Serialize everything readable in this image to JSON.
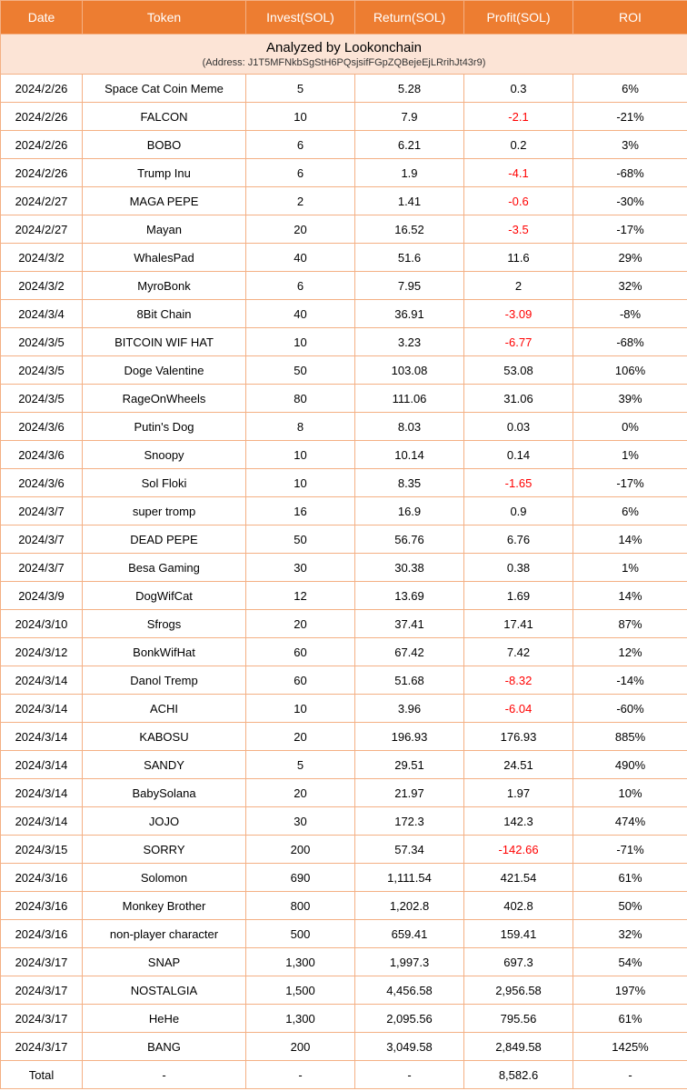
{
  "colors": {
    "header_bg": "#ed7d31",
    "header_fg": "#ffffff",
    "border": "#f4b084",
    "analyzed_bg": "#fce4d6",
    "negative": "#ff0000",
    "text": "#000000"
  },
  "columns": [
    "Date",
    "Token",
    "Invest(SOL)",
    "Return(SOL)",
    "Profit(SOL)",
    "ROI"
  ],
  "analyzed": {
    "title": "Analyzed by Lookonchain",
    "address": "(Address: J1T5MFNkbSgStH6PQsjsifFGpZQBejeEjLRrihJt43r9)"
  },
  "rows": [
    {
      "date": "2024/2/26",
      "token": "Space Cat Coin Meme",
      "invest": "5",
      "return": "5.28",
      "profit": "0.3",
      "roi": "6%",
      "neg": false
    },
    {
      "date": "2024/2/26",
      "token": "FALCON",
      "invest": "10",
      "return": "7.9",
      "profit": "-2.1",
      "roi": "-21%",
      "neg": true
    },
    {
      "date": "2024/2/26",
      "token": "BOBO",
      "invest": "6",
      "return": "6.21",
      "profit": "0.2",
      "roi": "3%",
      "neg": false
    },
    {
      "date": "2024/2/26",
      "token": "Trump Inu",
      "invest": "6",
      "return": "1.9",
      "profit": "-4.1",
      "roi": "-68%",
      "neg": true
    },
    {
      "date": "2024/2/27",
      "token": "MAGA PEPE",
      "invest": "2",
      "return": "1.41",
      "profit": "-0.6",
      "roi": "-30%",
      "neg": true
    },
    {
      "date": "2024/2/27",
      "token": "Mayan",
      "invest": "20",
      "return": "16.52",
      "profit": "-3.5",
      "roi": "-17%",
      "neg": true
    },
    {
      "date": "2024/3/2",
      "token": "WhalesPad",
      "invest": "40",
      "return": "51.6",
      "profit": "11.6",
      "roi": "29%",
      "neg": false
    },
    {
      "date": "2024/3/2",
      "token": "MyroBonk",
      "invest": "6",
      "return": "7.95",
      "profit": "2",
      "roi": "32%",
      "neg": false
    },
    {
      "date": "2024/3/4",
      "token": "8Bit Chain",
      "invest": "40",
      "return": "36.91",
      "profit": "-3.09",
      "roi": "-8%",
      "neg": true
    },
    {
      "date": "2024/3/5",
      "token": "BITCOIN WIF HAT",
      "invest": "10",
      "return": "3.23",
      "profit": "-6.77",
      "roi": "-68%",
      "neg": true
    },
    {
      "date": "2024/3/5",
      "token": "Doge Valentine",
      "invest": "50",
      "return": "103.08",
      "profit": "53.08",
      "roi": "106%",
      "neg": false
    },
    {
      "date": "2024/3/5",
      "token": "RageOnWheels",
      "invest": "80",
      "return": "111.06",
      "profit": "31.06",
      "roi": "39%",
      "neg": false
    },
    {
      "date": "2024/3/6",
      "token": "Putin's Dog",
      "invest": "8",
      "return": "8.03",
      "profit": "0.03",
      "roi": "0%",
      "neg": false
    },
    {
      "date": "2024/3/6",
      "token": "Snoopy",
      "invest": "10",
      "return": "10.14",
      "profit": "0.14",
      "roi": "1%",
      "neg": false
    },
    {
      "date": "2024/3/6",
      "token": "Sol Floki",
      "invest": "10",
      "return": "8.35",
      "profit": "-1.65",
      "roi": "-17%",
      "neg": true
    },
    {
      "date": "2024/3/7",
      "token": "super tromp",
      "invest": "16",
      "return": "16.9",
      "profit": "0.9",
      "roi": "6%",
      "neg": false
    },
    {
      "date": "2024/3/7",
      "token": "DEAD PEPE",
      "invest": "50",
      "return": "56.76",
      "profit": "6.76",
      "roi": "14%",
      "neg": false
    },
    {
      "date": "2024/3/7",
      "token": "Besa Gaming",
      "invest": "30",
      "return": "30.38",
      "profit": "0.38",
      "roi": "1%",
      "neg": false
    },
    {
      "date": "2024/3/9",
      "token": "DogWifCat",
      "invest": "12",
      "return": "13.69",
      "profit": "1.69",
      "roi": "14%",
      "neg": false
    },
    {
      "date": "2024/3/10",
      "token": "Sfrogs",
      "invest": "20",
      "return": "37.41",
      "profit": "17.41",
      "roi": "87%",
      "neg": false
    },
    {
      "date": "2024/3/12",
      "token": "BonkWifHat",
      "invest": "60",
      "return": "67.42",
      "profit": "7.42",
      "roi": "12%",
      "neg": false
    },
    {
      "date": "2024/3/14",
      "token": "Danol Tremp",
      "invest": "60",
      "return": "51.68",
      "profit": "-8.32",
      "roi": "-14%",
      "neg": true
    },
    {
      "date": "2024/3/14",
      "token": "ACHI",
      "invest": "10",
      "return": "3.96",
      "profit": "-6.04",
      "roi": "-60%",
      "neg": true
    },
    {
      "date": "2024/3/14",
      "token": "KABOSU",
      "invest": "20",
      "return": "196.93",
      "profit": "176.93",
      "roi": "885%",
      "neg": false
    },
    {
      "date": "2024/3/14",
      "token": "SANDY",
      "invest": "5",
      "return": "29.51",
      "profit": "24.51",
      "roi": "490%",
      "neg": false
    },
    {
      "date": "2024/3/14",
      "token": "BabySolana",
      "invest": "20",
      "return": "21.97",
      "profit": "1.97",
      "roi": "10%",
      "neg": false
    },
    {
      "date": "2024/3/14",
      "token": "JOJO",
      "invest": "30",
      "return": "172.3",
      "profit": "142.3",
      "roi": "474%",
      "neg": false
    },
    {
      "date": "2024/3/15",
      "token": "SORRY",
      "invest": "200",
      "return": "57.34",
      "profit": "-142.66",
      "roi": "-71%",
      "neg": true
    },
    {
      "date": "2024/3/16",
      "token": "Solomon",
      "invest": "690",
      "return": "1,111.54",
      "profit": "421.54",
      "roi": "61%",
      "neg": false
    },
    {
      "date": "2024/3/16",
      "token": "Monkey Brother",
      "invest": "800",
      "return": "1,202.8",
      "profit": "402.8",
      "roi": "50%",
      "neg": false
    },
    {
      "date": "2024/3/16",
      "token": "non-player character",
      "invest": "500",
      "return": "659.41",
      "profit": "159.41",
      "roi": "32%",
      "neg": false
    },
    {
      "date": "2024/3/17",
      "token": "SNAP",
      "invest": "1,300",
      "return": "1,997.3",
      "profit": "697.3",
      "roi": "54%",
      "neg": false
    },
    {
      "date": "2024/3/17",
      "token": "NOSTALGIA",
      "invest": "1,500",
      "return": "4,456.58",
      "profit": "2,956.58",
      "roi": "197%",
      "neg": false
    },
    {
      "date": "2024/3/17",
      "token": "HeHe",
      "invest": "1,300",
      "return": "2,095.56",
      "profit": "795.56",
      "roi": "61%",
      "neg": false
    },
    {
      "date": "2024/3/17",
      "token": "BANG",
      "invest": "200",
      "return": "3,049.58",
      "profit": "2,849.58",
      "roi": "1425%",
      "neg": false
    }
  ],
  "total": {
    "date": "Total",
    "token": "-",
    "invest": "-",
    "return": "-",
    "profit": "8,582.6",
    "roi": "-"
  }
}
